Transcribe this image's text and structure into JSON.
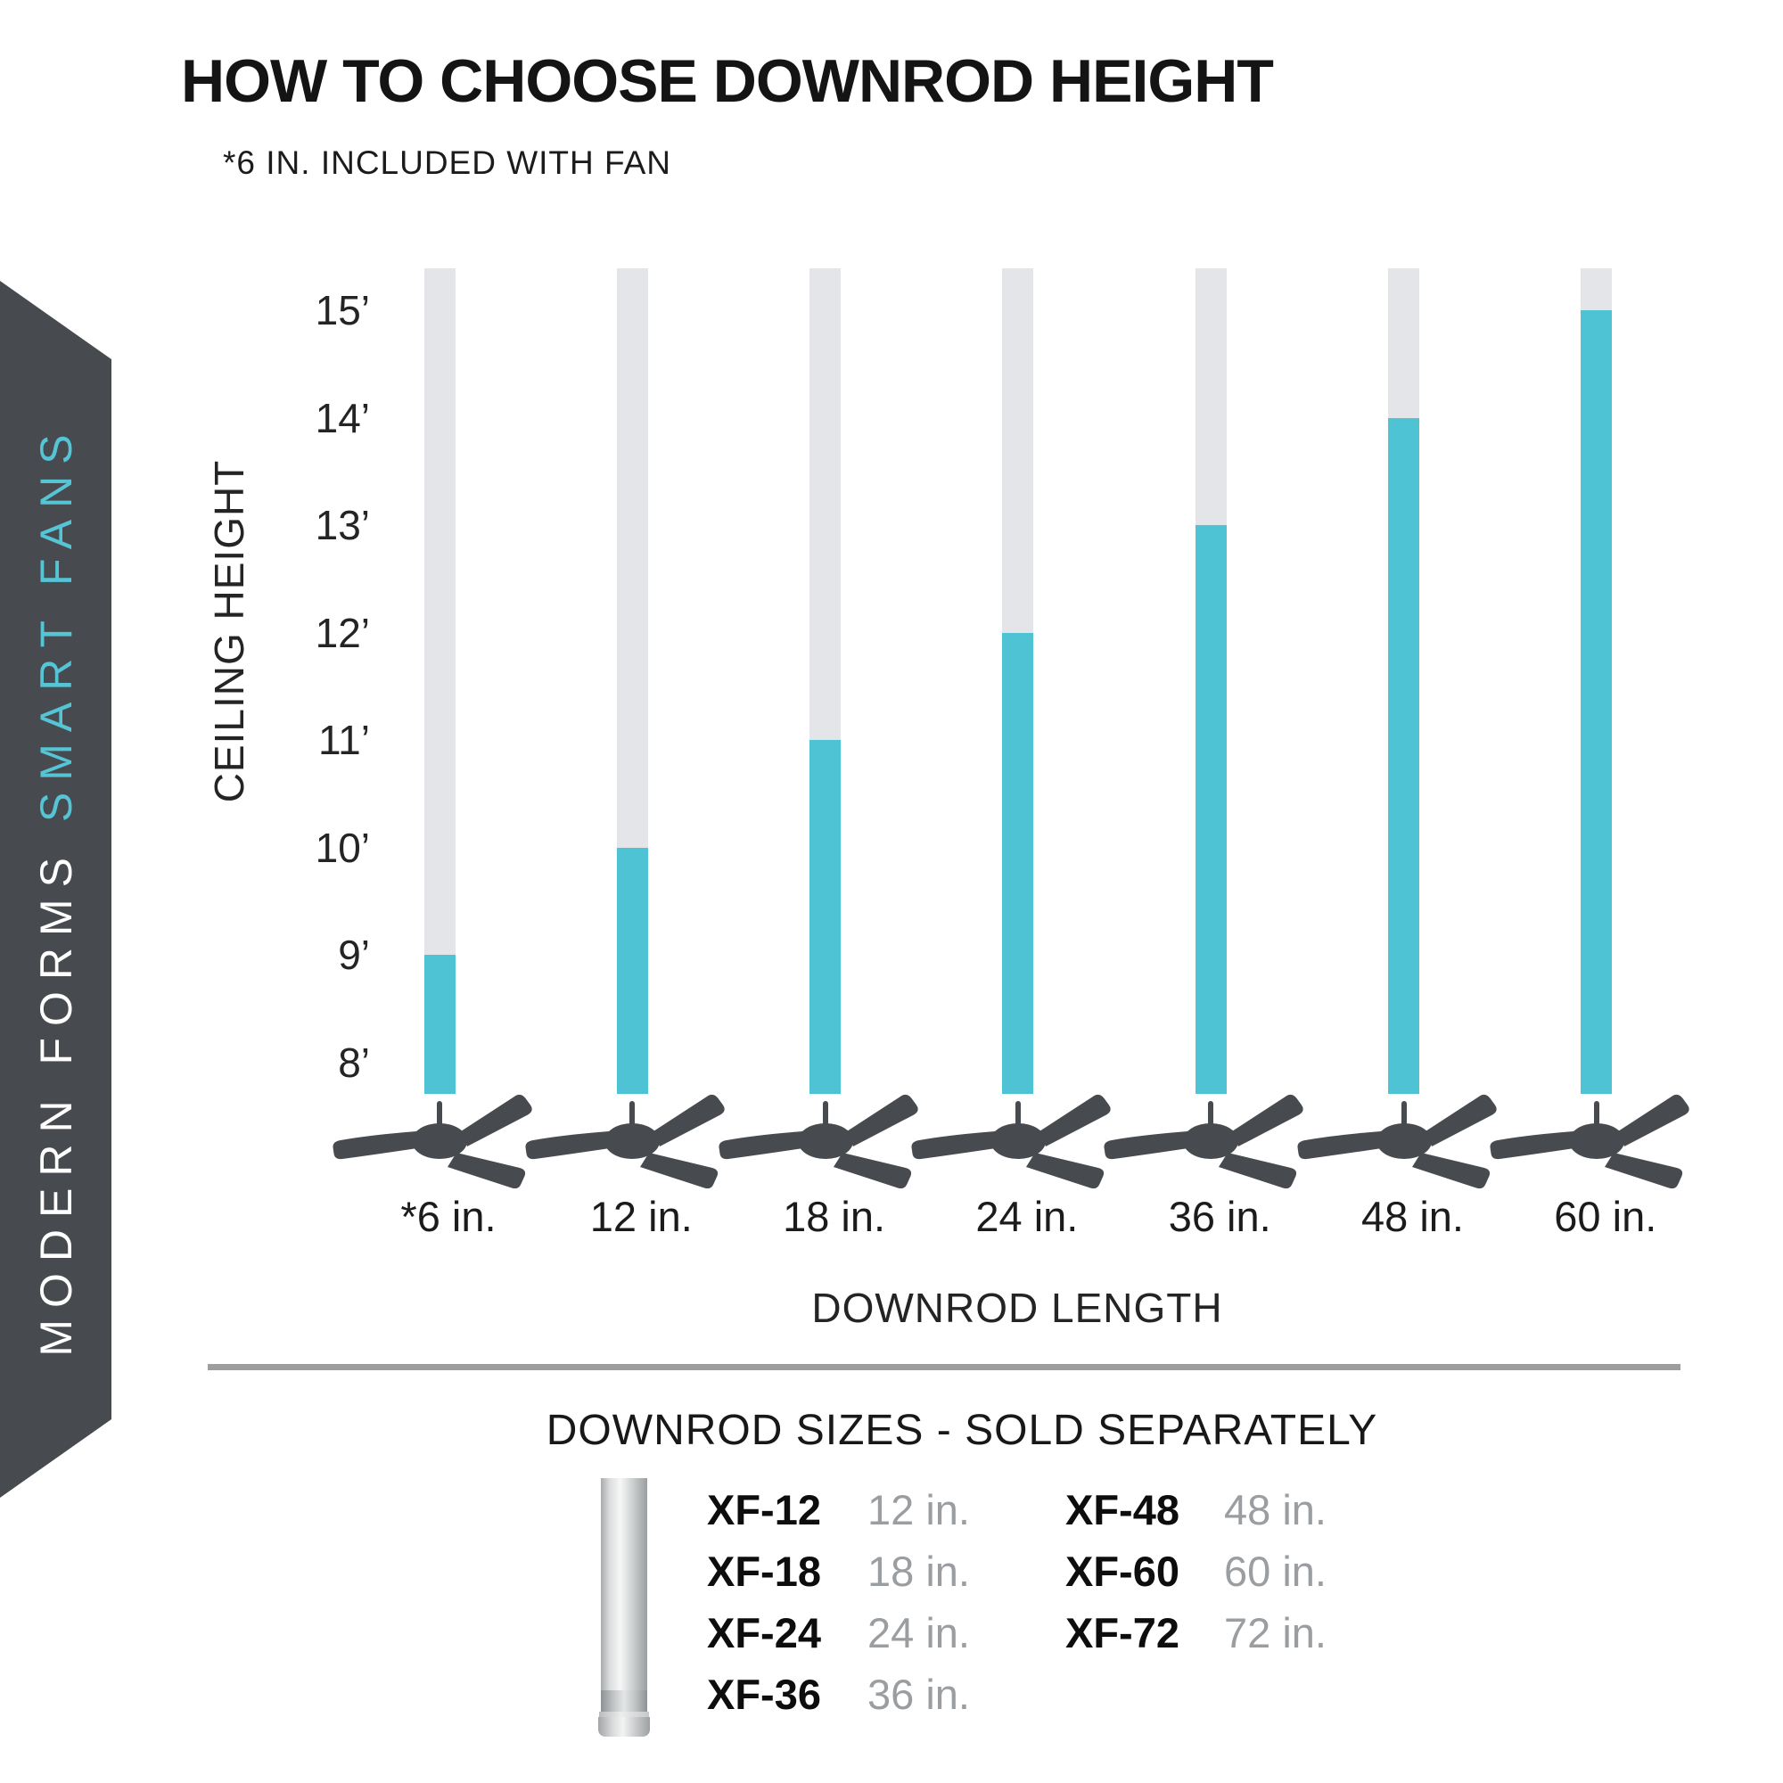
{
  "page": {
    "title": "HOW TO CHOOSE DOWNROD HEIGHT",
    "subtitle": "*6 IN. INCLUDED WITH FAN"
  },
  "sidebar": {
    "brand_primary": "MODERN FORMS ",
    "brand_accent": "SMART FANS",
    "background": "#474a4f",
    "primary_color": "#ffffff",
    "accent_color": "#55c4d4"
  },
  "chart_data": {
    "type": "bar",
    "title": "",
    "xlabel": "DOWNROD LENGTH",
    "ylabel": "CEILING HEIGHT",
    "categories": [
      "*6 in.",
      "12 in.",
      "18 in.",
      "24 in.",
      "36 in.",
      "48 in.",
      "60 in."
    ],
    "values": [
      9,
      10,
      11,
      12,
      13,
      14,
      15
    ],
    "values_unit": "ft ceiling height",
    "y_ticks": [
      "15’",
      "14’",
      "13’",
      "12’",
      "11’",
      "10’",
      "9’",
      "8’"
    ],
    "ylim": [
      8,
      15
    ],
    "grid": false,
    "legend_position": "none",
    "colors": {
      "fill": "#4ec3d3",
      "track": "#e3e5e9",
      "fan": "#474a4f",
      "text": "#242424"
    }
  },
  "downrod_table": {
    "title": "DOWNROD SIZES - SOLD SEPARATELY",
    "text_color": "#0d0d0d",
    "length_color": "#9b9ea1",
    "left_rows": [
      {
        "model": "XF-12",
        "length": "12 in."
      },
      {
        "model": "XF-18",
        "length": "18 in."
      },
      {
        "model": "XF-24",
        "length": "24 in."
      },
      {
        "model": "XF-36",
        "length": "36 in."
      }
    ],
    "right_rows": [
      {
        "model": "XF-48",
        "length": "48 in."
      },
      {
        "model": "XF-60",
        "length": "60 in."
      },
      {
        "model": "XF-72",
        "length": "72 in."
      }
    ]
  }
}
